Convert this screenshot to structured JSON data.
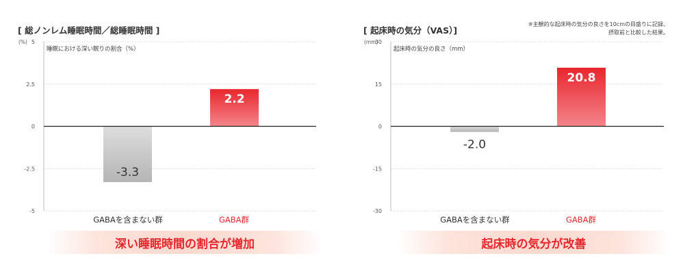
{
  "colors": {
    "bar_negative": "#c4c4c4",
    "bar_positive": "#e8262d",
    "accent_text": "#e8262d"
  },
  "charts": [
    {
      "title": "[ 総ノンレム睡眠時間／総睡眠時間 ]",
      "unit": "(%)",
      "subtitle": "睡眠における深い眠りの割合（%）",
      "note": [],
      "banner": "深い睡眠時間の割合が増加"
    },
    {
      "title": "[ 起床時の気分（VAS）]",
      "unit": "(mm)",
      "subtitle": "起床時の気分の良さ（mm）",
      "note": [
        "※主観的な起床時の気分の良さを10cmの目盛りに記録、",
        "摂取前と比較した結果。"
      ],
      "banner": "起床時の気分が改善"
    }
  ],
  "chart_data": [
    {
      "type": "bar",
      "categories": [
        "GABAを含まない群",
        "GABA群"
      ],
      "values": [
        -3.3,
        2.2
      ],
      "data_labels": [
        "-3.3",
        "2.2"
      ],
      "ylim": [
        -5,
        5
      ],
      "yticks": [
        5,
        2.5,
        0,
        -2.5,
        -5
      ],
      "ytick_labels": [
        "5",
        "2.5",
        "0",
        "-2.5",
        "-5"
      ],
      "grid": true,
      "legend": "none"
    },
    {
      "type": "bar",
      "categories": [
        "GABAを含まない群",
        "GABA群"
      ],
      "values": [
        -2.0,
        20.8
      ],
      "data_labels": [
        "-2.0",
        "20.8"
      ],
      "ylim": [
        -30,
        30
      ],
      "yticks": [
        30,
        15,
        0,
        -15,
        -30
      ],
      "ytick_labels": [
        "30",
        "15",
        "0",
        "-15",
        "-30"
      ],
      "grid": true,
      "legend": "none"
    }
  ]
}
